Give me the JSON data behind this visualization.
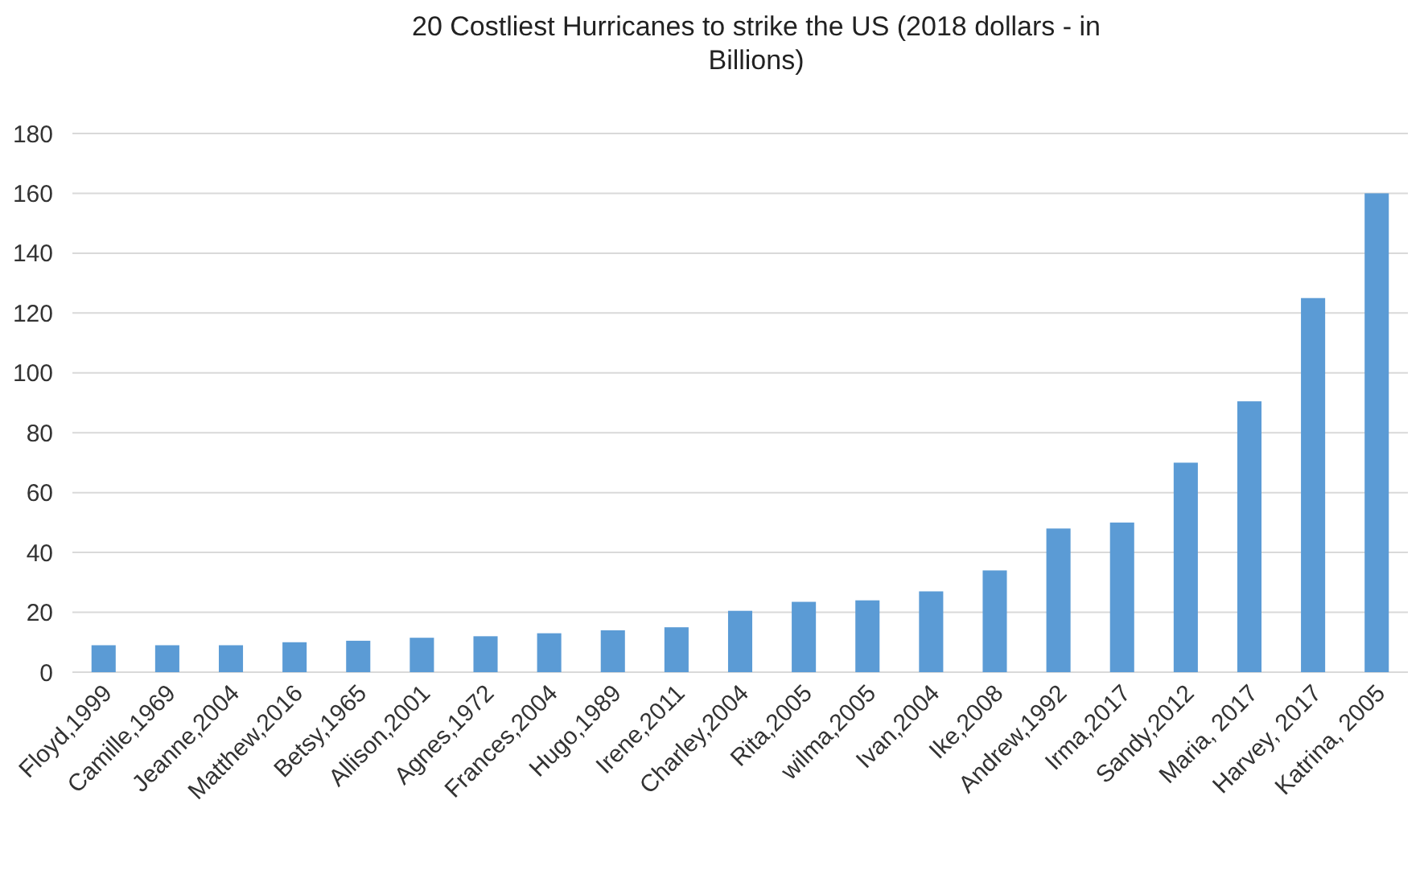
{
  "chart_data": {
    "type": "bar",
    "title": "20 Costliest Hurricanes to strike the US (2018 dollars - in Billions)",
    "categories": [
      "Floyd,1999",
      "Camille,1969",
      "Jeanne,2004",
      "Matthew,2016",
      "Betsy,1965",
      "Allison,2001",
      "Agnes,1972",
      "Frances,2004",
      "Hugo,1989",
      "Irene,2011",
      "Charley,2004",
      "Rita,2005",
      "wilma,2005",
      "Ivan,2004",
      "Ike,2008",
      "Andrew,1992",
      "Irma,2017",
      "Sandy,2012",
      "Maria, 2017",
      "Harvey, 2017",
      "Katrina, 2005"
    ],
    "values": [
      9,
      9,
      9,
      10,
      10.5,
      11.5,
      12,
      13,
      14,
      15,
      20.5,
      23.5,
      24,
      27,
      34,
      48,
      50,
      70,
      90.5,
      125,
      160
    ],
    "color": "#5b9bd5",
    "ylim": [
      0,
      180
    ],
    "yticks": [
      0,
      20,
      40,
      60,
      80,
      100,
      120,
      140,
      160,
      180
    ],
    "grid": "y"
  }
}
